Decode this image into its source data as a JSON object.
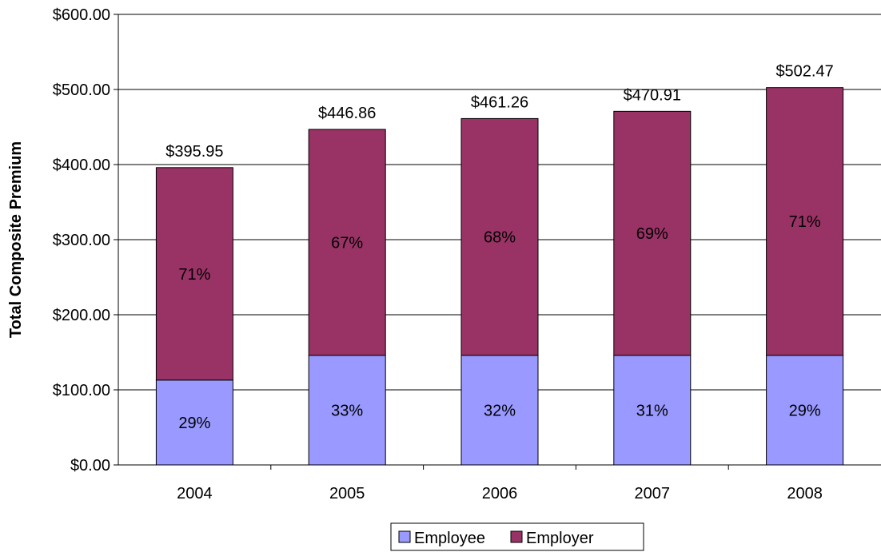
{
  "chart_data": {
    "type": "bar",
    "stacked": true,
    "categories": [
      "2004",
      "2005",
      "2006",
      "2007",
      "2008"
    ],
    "series": [
      {
        "name": "Employee",
        "color": "#9999ff",
        "values": [
          113,
          146,
          146,
          146,
          146
        ],
        "labels": [
          "29%",
          "33%",
          "32%",
          "31%",
          "29%"
        ]
      },
      {
        "name": "Employer",
        "color": "#993366",
        "values": [
          282.95,
          300.86,
          315.26,
          324.91,
          356.47
        ],
        "labels": [
          "71%",
          "67%",
          "68%",
          "69%",
          "71%"
        ]
      }
    ],
    "totals": [
      395.95,
      446.86,
      461.26,
      470.91,
      502.47
    ],
    "total_labels": [
      "$395.95",
      "$446.86",
      "$461.26",
      "$470.91",
      "$502.47"
    ],
    "ylabel": "Total Composite Premium",
    "xlabel": "",
    "ylim": [
      0,
      600
    ],
    "yticks": [
      0,
      100,
      200,
      300,
      400,
      500,
      600
    ],
    "ytick_labels": [
      "$0.00",
      "$100.00",
      "$200.00",
      "$300.00",
      "$400.00",
      "$500.00",
      "$600.00"
    ],
    "grid": true,
    "legend_position": "bottom"
  }
}
